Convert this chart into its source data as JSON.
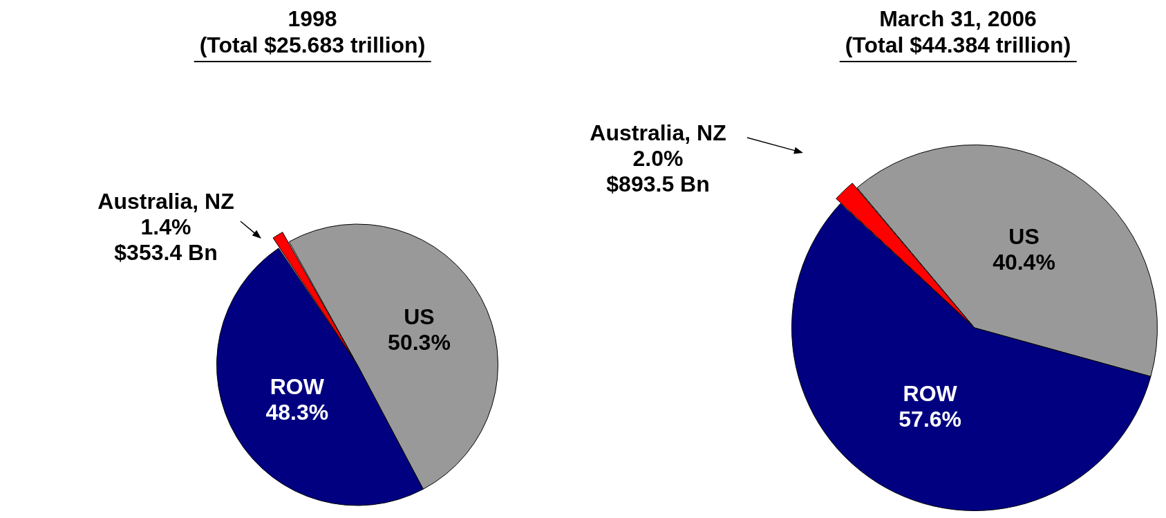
{
  "chart_data": [
    {
      "type": "pie",
      "title": "1998",
      "subtitle": "(Total $25.683 trillion)",
      "categories": [
        "US",
        "ROW",
        "Australia, NZ"
      ],
      "values": [
        50.3,
        48.3,
        1.4
      ],
      "colors": [
        "#999999",
        "#000080",
        "#ff0000"
      ],
      "value_labels": [
        "50.3%",
        "48.3%",
        "1.4%\n$353.4 Bn"
      ]
    },
    {
      "type": "pie",
      "title": "March 31, 2006",
      "subtitle": "(Total $44.384 trillion)",
      "categories": [
        "US",
        "ROW",
        "Australia, NZ"
      ],
      "values": [
        40.4,
        57.6,
        2.0
      ],
      "colors": [
        "#999999",
        "#000080",
        "#ff0000"
      ],
      "value_labels": [
        "40.4%",
        "57.6%",
        "2.0%\n$893.5 Bn"
      ]
    }
  ]
}
